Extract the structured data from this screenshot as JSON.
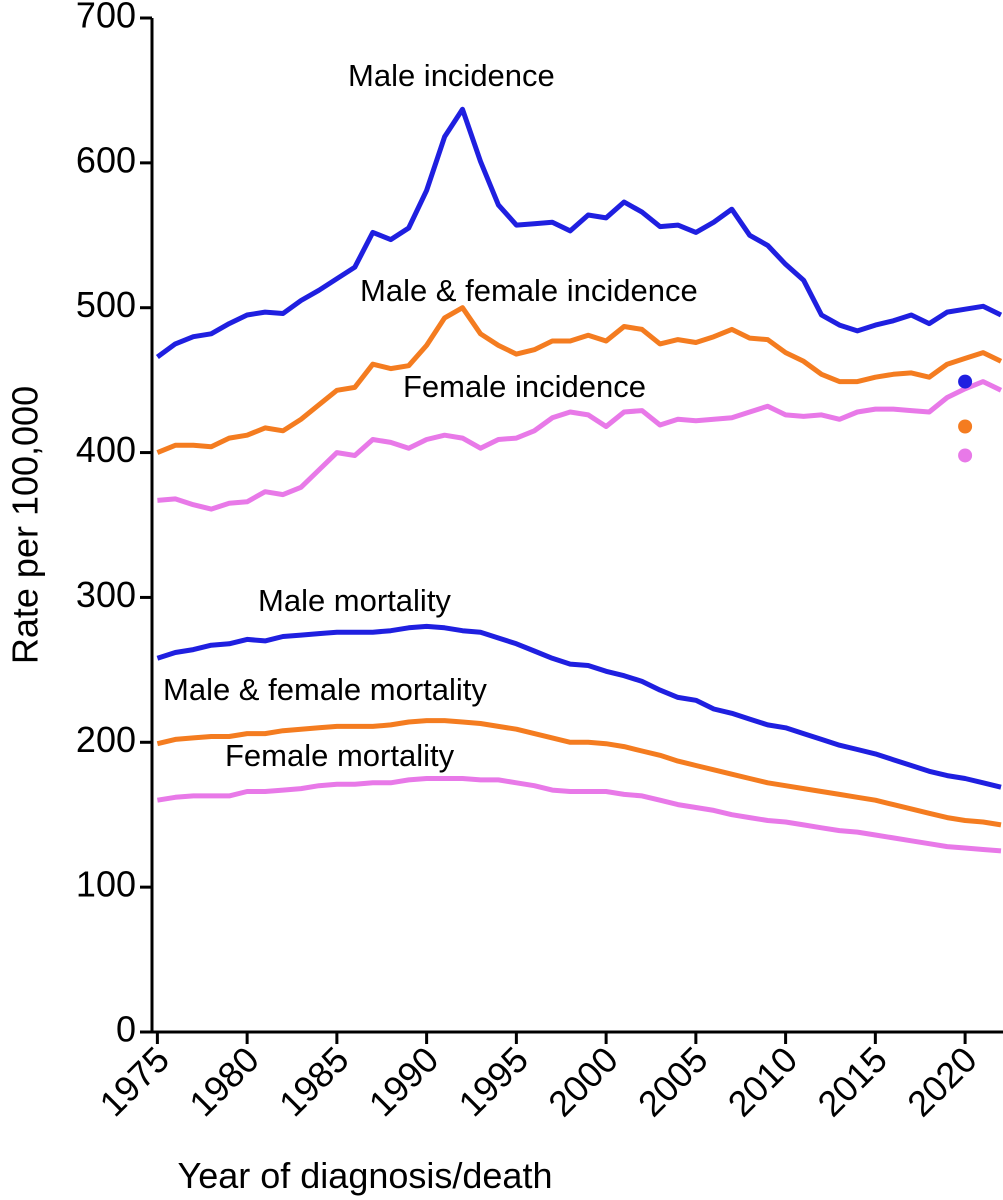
{
  "chart_data": {
    "type": "line",
    "xlabel": "Year of diagnosis/death",
    "ylabel": "Rate per 100,000",
    "x": [
      1975,
      1976,
      1977,
      1978,
      1979,
      1980,
      1981,
      1982,
      1983,
      1984,
      1985,
      1986,
      1987,
      1988,
      1989,
      1990,
      1991,
      1992,
      1993,
      1994,
      1995,
      1996,
      1997,
      1998,
      1999,
      2000,
      2001,
      2002,
      2003,
      2004,
      2005,
      2006,
      2007,
      2008,
      2009,
      2010,
      2011,
      2012,
      2013,
      2014,
      2015,
      2016,
      2017,
      2018,
      2019,
      2020,
      2021,
      2022
    ],
    "series": [
      {
        "name": "Male incidence",
        "color": "#1f1fe0",
        "values": [
          466,
          475,
          480,
          482,
          489,
          495,
          497,
          496,
          505,
          512,
          520,
          528,
          552,
          547,
          555,
          581,
          618,
          637,
          601,
          571,
          557,
          558,
          559,
          553,
          564,
          562,
          573,
          566,
          556,
          557,
          552,
          559,
          568,
          550,
          543,
          530,
          519,
          495,
          488,
          484,
          488,
          491,
          495,
          489,
          497,
          499,
          501,
          495
        ]
      },
      {
        "name": "Male & female incidence",
        "color": "#f47c20",
        "values": [
          400,
          405,
          405,
          404,
          410,
          412,
          417,
          415,
          423,
          433,
          443,
          445,
          461,
          458,
          460,
          474,
          493,
          500,
          482,
          474,
          468,
          471,
          477,
          477,
          481,
          477,
          487,
          485,
          475,
          478,
          476,
          480,
          485,
          479,
          478,
          469,
          463,
          454,
          449,
          449,
          452,
          454,
          455,
          452,
          461,
          465,
          469,
          463
        ]
      },
      {
        "name": "Female incidence",
        "color": "#e879e8",
        "values": [
          367,
          368,
          364,
          361,
          365,
          366,
          373,
          371,
          376,
          388,
          400,
          398,
          409,
          407,
          403,
          409,
          412,
          410,
          403,
          409,
          410,
          415,
          424,
          428,
          426,
          418,
          428,
          429,
          419,
          423,
          422,
          423,
          424,
          428,
          432,
          426,
          425,
          426,
          423,
          428,
          430,
          430,
          429,
          428,
          438,
          444,
          449,
          443
        ]
      },
      {
        "name": "Male mortality",
        "color": "#1f1fe0",
        "values": [
          258,
          262,
          264,
          267,
          268,
          271,
          270,
          273,
          274,
          275,
          276,
          276,
          276,
          277,
          279,
          280,
          279,
          277,
          276,
          272,
          268,
          263,
          258,
          254,
          253,
          249,
          246,
          242,
          236,
          231,
          229,
          223,
          220,
          216,
          212,
          210,
          206,
          202,
          198,
          195,
          192,
          188,
          184,
          180,
          177,
          175,
          172,
          169
        ]
      },
      {
        "name": "Male & female mortality",
        "color": "#f47c20",
        "values": [
          199,
          202,
          203,
          204,
          204,
          206,
          206,
          208,
          209,
          210,
          211,
          211,
          211,
          212,
          214,
          215,
          215,
          214,
          213,
          211,
          209,
          206,
          203,
          200,
          200,
          199,
          197,
          194,
          191,
          187,
          184,
          181,
          178,
          175,
          172,
          170,
          168,
          166,
          164,
          162,
          160,
          157,
          154,
          151,
          148,
          146,
          145,
          143
        ]
      },
      {
        "name": "Female mortality",
        "color": "#e879e8",
        "values": [
          160,
          162,
          163,
          163,
          163,
          166,
          166,
          167,
          168,
          170,
          171,
          171,
          172,
          172,
          174,
          175,
          175,
          175,
          174,
          174,
          172,
          170,
          167,
          166,
          166,
          166,
          164,
          163,
          160,
          157,
          155,
          153,
          150,
          148,
          146,
          145,
          143,
          141,
          139,
          138,
          136,
          134,
          132,
          130,
          128,
          127,
          126,
          125
        ]
      }
    ],
    "points": [
      {
        "x": 2020,
        "y": 449,
        "color": "#1f1fe0"
      },
      {
        "x": 2020,
        "y": 418,
        "color": "#f47c20"
      },
      {
        "x": 2020,
        "y": 398,
        "color": "#e879e8"
      }
    ],
    "xlim": [
      1974.7,
      2022
    ],
    "ylim": [
      0,
      700
    ],
    "xticks": [
      1975,
      1980,
      1985,
      1990,
      1995,
      2000,
      2005,
      2010,
      2015,
      2020
    ],
    "yticks": [
      0,
      100,
      200,
      300,
      400,
      500,
      600,
      700
    ]
  }
}
